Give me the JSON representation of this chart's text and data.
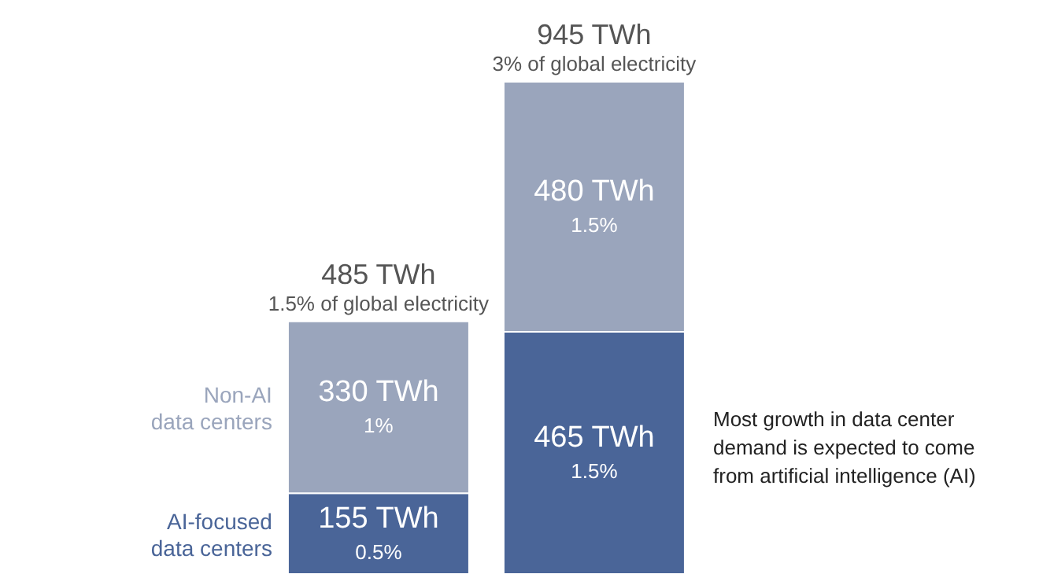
{
  "chart_data": {
    "type": "bar",
    "stacked": true,
    "categories": [
      null,
      null
    ],
    "series": [
      {
        "name": "AI-focused data centers",
        "color": "#4a6598",
        "values": [
          155,
          465
        ],
        "value_labels": [
          "155 TWh\n0.5%",
          "465 TWh\n1.5%"
        ]
      },
      {
        "name": "Non-AI data centers",
        "color": "#9aa5bc",
        "values": [
          330,
          480
        ],
        "value_labels": [
          "330 TWh\n1%",
          "480 TWh\n1.5%"
        ]
      }
    ],
    "totals": [
      "485 TWh\n1.5% of global electricity",
      "945 TWh\n3% of global electricity"
    ],
    "annotations": [
      "Most growth in data center demand is expected to come from artificial intelligence (AI)"
    ]
  }
}
